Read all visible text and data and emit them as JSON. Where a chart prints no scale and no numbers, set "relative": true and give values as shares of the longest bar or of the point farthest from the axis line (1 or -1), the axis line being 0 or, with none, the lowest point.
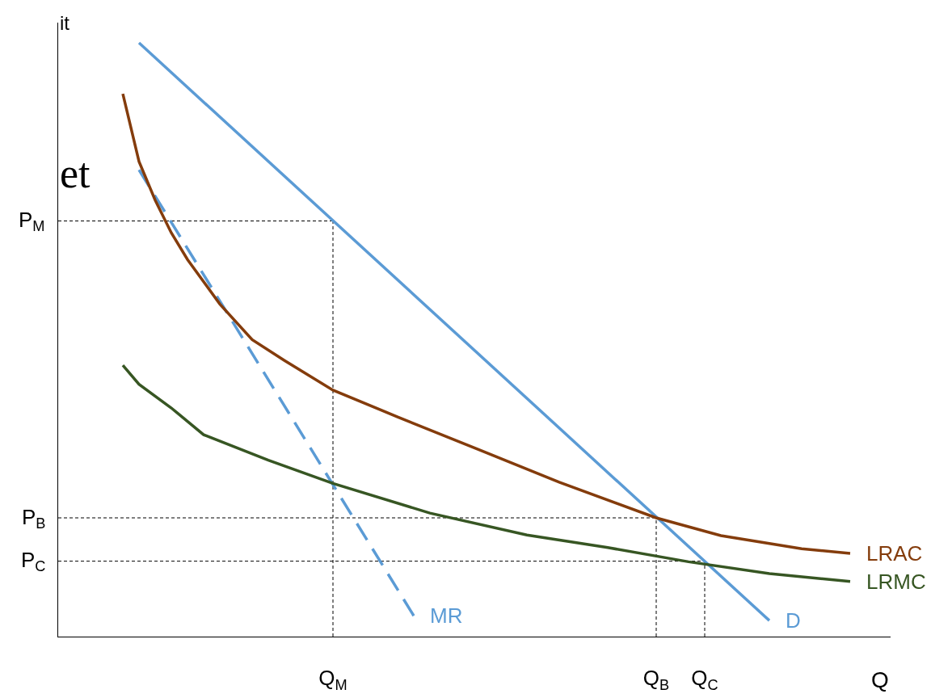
{
  "chart_data": {
    "type": "line",
    "relative": true,
    "xlabel": "Q",
    "legend": false,
    "grid": false,
    "marker": "none",
    "categories": [
      null,
      null,
      null,
      null,
      null,
      null,
      null,
      null,
      null,
      null,
      null,
      null,
      null,
      null,
      null,
      null,
      null,
      "Q$_{M}$",
      null,
      null,
      null,
      null,
      null,
      null,
      null,
      null,
      null,
      null,
      null,
      null,
      null,
      null,
      null,
      null,
      null,
      null,
      null,
      "Q$_{B}$",
      null,
      null,
      "Q$_{C}$",
      null,
      null,
      null,
      null,
      null,
      null,
      null,
      null,
      null,
      null,
      null
    ],
    "series": [
      {
        "name": "D",
        "color": "#5b9bd5",
        "line_style": "solid",
        "values": [
          null,
          null,
          null,
          null,
          null,
          1.0,
          null,
          null,
          null,
          null,
          null,
          null,
          null,
          null,
          null,
          null,
          null,
          null,
          null,
          null,
          null,
          null,
          null,
          null,
          null,
          null,
          null,
          null,
          null,
          null,
          null,
          null,
          null,
          null,
          null,
          null,
          null,
          null,
          null,
          null,
          null,
          null,
          null,
          null,
          0.027,
          null,
          null,
          null,
          null,
          null,
          null,
          null
        ]
      },
      {
        "name": "MR",
        "color": "#5b9bd5",
        "line_style": "dashed",
        "values": [
          null,
          null,
          null,
          null,
          null,
          0.786,
          null,
          null,
          null,
          null,
          null,
          null,
          null,
          null,
          null,
          null,
          null,
          null,
          null,
          null,
          null,
          null,
          0.035,
          null,
          null,
          null,
          null,
          null,
          null,
          null,
          null,
          null,
          null,
          null,
          null,
          null,
          null,
          null,
          null,
          null,
          null,
          null,
          null,
          null,
          null,
          null,
          null,
          null,
          null,
          null,
          null,
          null
        ]
      },
      {
        "name": "LRAC",
        "color": "#843c0c",
        "line_style": "solid",
        "values": [
          null,
          null,
          null,
          null,
          0.914,
          0.8,
          0.735,
          0.68,
          0.635,
          null,
          0.56,
          null,
          0.5,
          null,
          0.465,
          null,
          null,
          0.415,
          null,
          null,
          null,
          0.37,
          null,
          null,
          null,
          null,
          0.315,
          null,
          null,
          null,
          null,
          0.26,
          null,
          null,
          null,
          null,
          null,
          0.2,
          null,
          null,
          null,
          0.17,
          null,
          null,
          null,
          null,
          0.148,
          null,
          null,
          0.14,
          null,
          null
        ]
      },
      {
        "name": "LRMC",
        "color": "#375623",
        "line_style": "solid",
        "values": [
          null,
          null,
          null,
          null,
          0.457,
          0.425,
          null,
          0.385,
          null,
          0.34,
          null,
          null,
          null,
          0.297,
          null,
          null,
          null,
          0.258,
          null,
          null,
          null,
          null,
          null,
          0.208,
          null,
          null,
          null,
          null,
          null,
          0.171,
          null,
          null,
          null,
          null,
          0.15,
          null,
          null,
          null,
          null,
          0.126,
          null,
          null,
          null,
          null,
          0.106,
          null,
          null,
          null,
          null,
          0.093,
          null,
          null
        ]
      }
    ],
    "ref_lines": [
      {
        "axis": "x",
        "value": "Q$_{M}$",
        "color": "#000000",
        "line_style": "dotted"
      },
      {
        "axis": "x",
        "value": "Q$_{B}$",
        "color": "#000000",
        "line_style": "dotted"
      },
      {
        "axis": "x",
        "value": "Q$_{C}$",
        "color": "#000000",
        "line_style": "dotted"
      }
    ],
    "annotations": [
      {
        "text": "P$_{M}$",
        "x": "Q$_{M}$",
        "y": 0.7
      },
      {
        "text": "P$_{B}$",
        "x": "Q$_{B}$",
        "y": 0.2
      },
      {
        "text": "P$_{C}$",
        "x": "Q$_{C}$",
        "y": 0.127
      },
      "it",
      "et"
    ]
  }
}
